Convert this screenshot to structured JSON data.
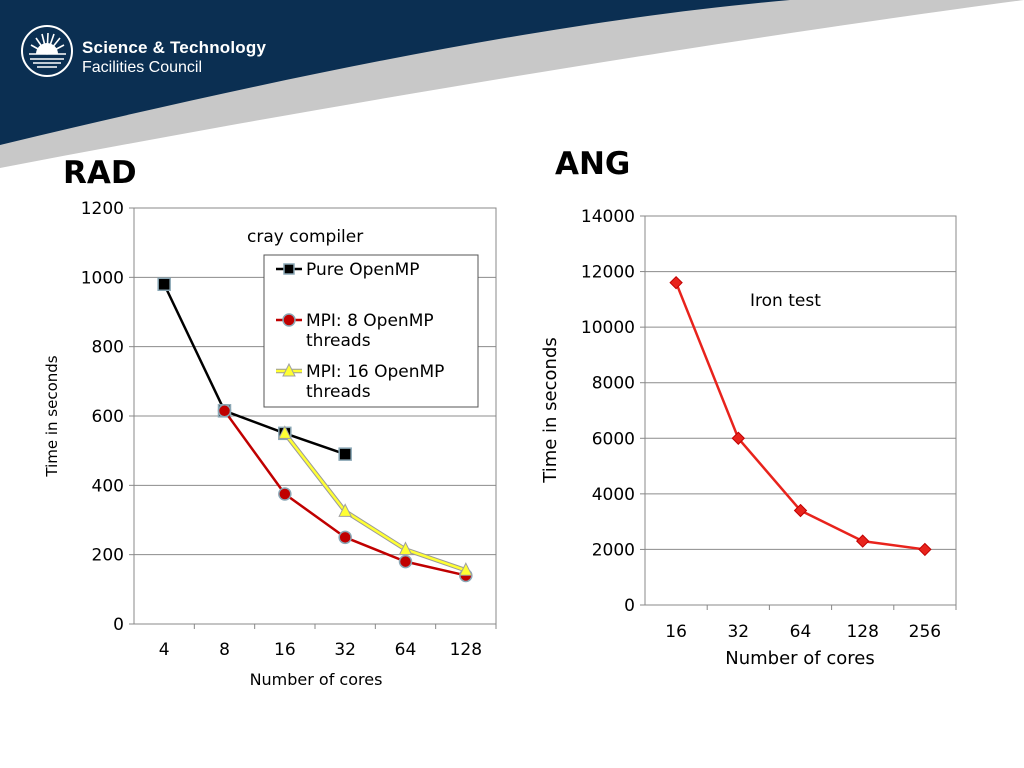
{
  "organization": {
    "line1": "Science & Technology",
    "line2": "Facilities Council"
  },
  "colors": {
    "banner_dark": "#0b2f52",
    "banner_light": "#c8c8c8",
    "black_series": "#000000",
    "red_series": "#c00000",
    "yellow_series": "#ffff33",
    "ang_series": "#e8231c"
  },
  "chart_data": [
    {
      "type": "line",
      "section_title": "RAD",
      "title": "",
      "annotation": "cray compiler",
      "xlabel": "Number of cores",
      "ylabel": "Time in seconds",
      "categories": [
        "4",
        "8",
        "16",
        "32",
        "64",
        "128"
      ],
      "ylim": [
        0,
        1200
      ],
      "yticks": [
        0,
        200,
        400,
        600,
        800,
        1000,
        1200
      ],
      "grid": true,
      "legend_position": "top-right",
      "series": [
        {
          "name": "Pure OpenMP",
          "marker": "square",
          "color": "#000000",
          "values": [
            980,
            615,
            550,
            490,
            null,
            null
          ]
        },
        {
          "name": "MPI: 8 OpenMP threads",
          "marker": "circle",
          "color": "#c00000",
          "values": [
            null,
            615,
            375,
            250,
            180,
            140
          ]
        },
        {
          "name": "MPI: 16 OpenMP threads",
          "marker": "triangle",
          "color": "#ffff33",
          "values": [
            null,
            null,
            550,
            325,
            215,
            155
          ]
        }
      ]
    },
    {
      "type": "line",
      "section_title": "ANG",
      "title": "",
      "annotation": "Iron test",
      "xlabel": "Number of cores",
      "ylabel": "Time in seconds",
      "categories": [
        "16",
        "32",
        "64",
        "128",
        "256"
      ],
      "ylim": [
        0,
        14000
      ],
      "yticks": [
        0,
        2000,
        4000,
        6000,
        8000,
        10000,
        12000,
        14000
      ],
      "grid": true,
      "series": [
        {
          "marker": "diamond",
          "color": "#e8231c",
          "values": [
            11600,
            6000,
            3400,
            2300,
            2000
          ]
        }
      ]
    }
  ]
}
